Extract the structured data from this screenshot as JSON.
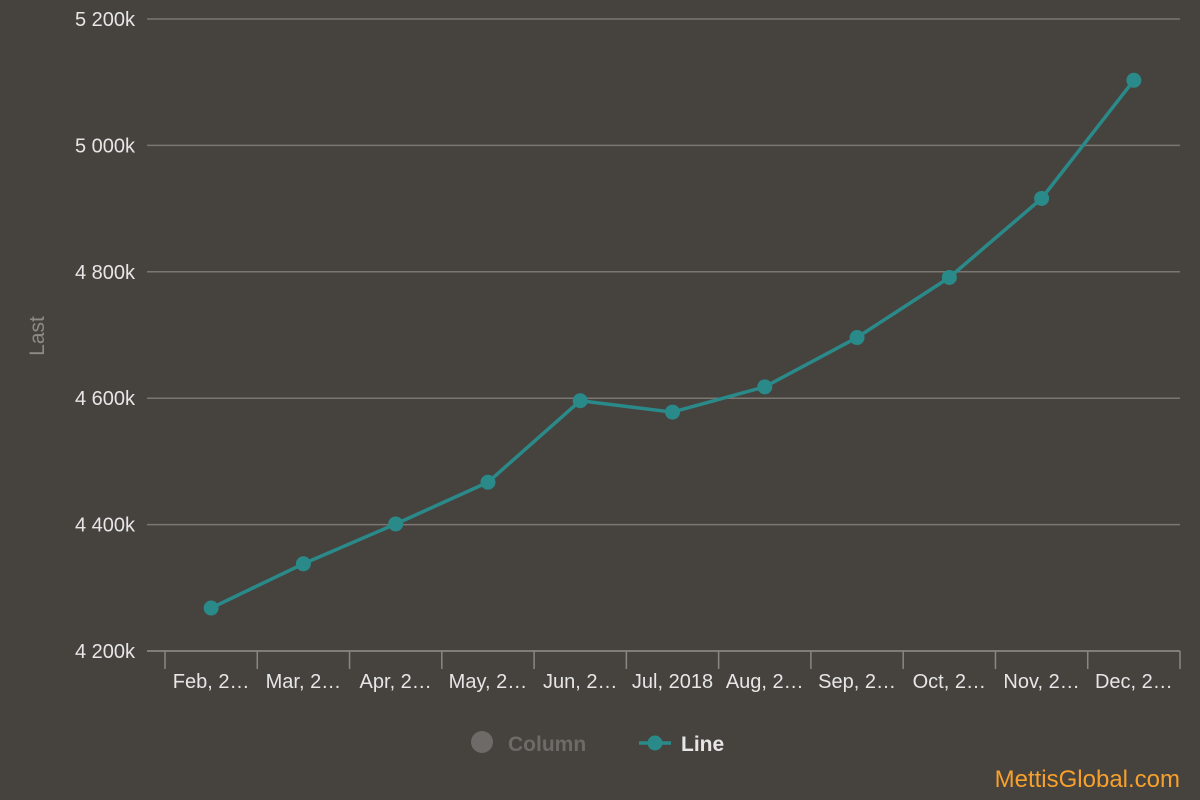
{
  "chart_data": {
    "type": "line",
    "ylabel": "Last",
    "ylim": [
      4200000,
      5200000
    ],
    "y_ticks": [
      {
        "value": 4200000,
        "label": "4 200k"
      },
      {
        "value": 4400000,
        "label": "4 400k"
      },
      {
        "value": 4600000,
        "label": "4 600k"
      },
      {
        "value": 4800000,
        "label": "4 800k"
      },
      {
        "value": 5000000,
        "label": "5 000k"
      },
      {
        "value": 5200000,
        "label": "5 200k"
      }
    ],
    "categories": [
      "Feb, 2…",
      "Mar, 2…",
      "Apr, 2…",
      "May, 2…",
      "Jun, 2…",
      "Jul, 2018",
      "Aug, 2…",
      "Sep, 2…",
      "Oct, 2…",
      "Nov, 2…",
      "Dec, 2…"
    ],
    "series": [
      {
        "name": "Line",
        "color": "#2a8a8a",
        "values": [
          4268000,
          4338000,
          4401000,
          4467000,
          4596000,
          4578000,
          4618000,
          4696000,
          4791000,
          4916000,
          5103000
        ]
      }
    ],
    "legend": {
      "placement": "bottom-center",
      "items": [
        {
          "label": "Column",
          "active": false,
          "color": "#6e6a67"
        },
        {
          "label": "Line",
          "active": true,
          "color": "#2a8a8a"
        }
      ]
    },
    "grid": true
  },
  "watermark": {
    "text": "MettisGlobal.com",
    "color": "#f7a02c"
  }
}
